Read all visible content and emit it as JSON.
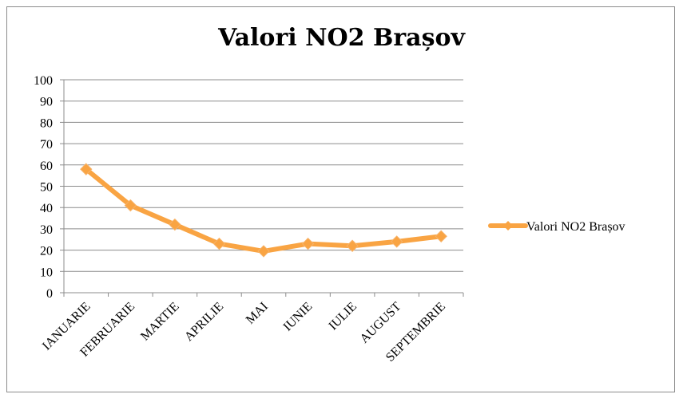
{
  "chart_data": {
    "type": "line",
    "title": "Valori NO2 Brașov",
    "categories": [
      "IANUARIE",
      "FEBRUARIE",
      "MARTIE",
      "APRILIE",
      "MAI",
      "IUNIE",
      "IULIE",
      "AUGUST",
      "SEPTEMBRIE"
    ],
    "series": [
      {
        "name": "Valori NO2 Brașov",
        "values": [
          58,
          41,
          32,
          23,
          19.5,
          23,
          22,
          24,
          26.5
        ],
        "color": "#f9a443"
      }
    ],
    "ylim": [
      0,
      100
    ],
    "yticks": [
      0,
      10,
      20,
      30,
      40,
      50,
      60,
      70,
      80,
      90,
      100
    ],
    "grid": true,
    "legend": "right",
    "marker": "diamond"
  }
}
